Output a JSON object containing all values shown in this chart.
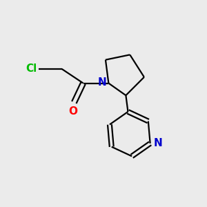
{
  "background_color": "#ebebeb",
  "bond_color": "#000000",
  "cl_color": "#00bb00",
  "o_color": "#ff0000",
  "n_color": "#0000cc",
  "line_width": 1.6,
  "figsize": [
    3.0,
    3.0
  ],
  "dpi": 100,
  "xlim": [
    0,
    10
  ],
  "ylim": [
    0,
    10
  ],
  "font_size": 11,
  "cl_label": "Cl",
  "o_label": "O",
  "n_label": "N"
}
